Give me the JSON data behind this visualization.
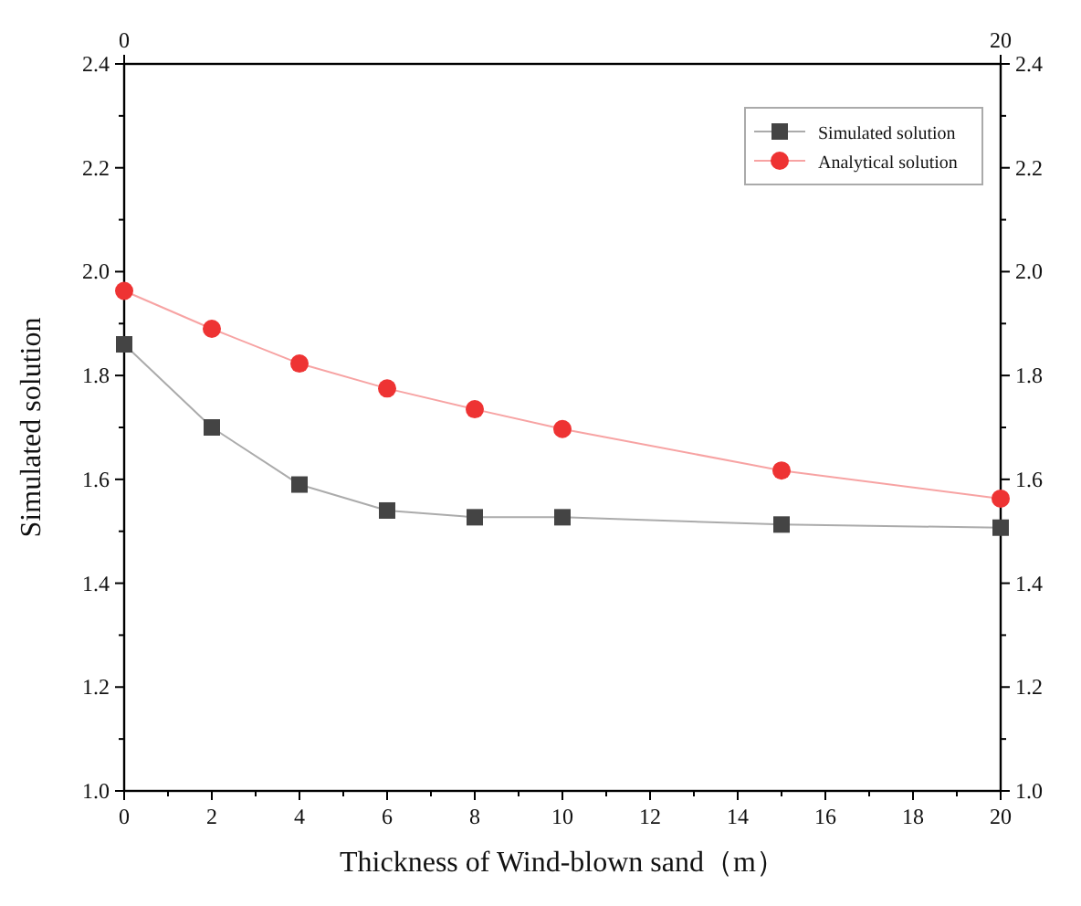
{
  "chart_data": {
    "type": "line",
    "xlabel": "Thickness of Wind-blown sand（m）",
    "ylabel": "Simulated solution",
    "x": [
      0,
      2,
      4,
      6,
      8,
      10,
      15,
      20
    ],
    "series": [
      {
        "name": "Simulated solution",
        "color": "#444444",
        "values": [
          1.86,
          1.7,
          1.59,
          1.54,
          1.527,
          1.527,
          1.513,
          1.507
        ]
      },
      {
        "name": "Analytical solution",
        "color": "#ee3333",
        "marker": "circle",
        "values": [
          1.963,
          1.89,
          1.823,
          1.775,
          1.735,
          1.697,
          1.617,
          1.563
        ]
      }
    ],
    "xlim": [
      0,
      20
    ],
    "xticks": [
      0,
      2,
      4,
      6,
      8,
      10,
      12,
      14,
      16,
      18,
      20
    ],
    "ylim": [
      1.0,
      2.4
    ],
    "yticks": [
      {
        "value": 1.0,
        "label": "1.0"
      },
      1.2,
      1.4,
      1.6,
      1.8,
      {
        "value": 2.0,
        "label": "2.0"
      },
      2.2,
      2.4
    ],
    "y2lim": [
      1.0,
      2.4
    ],
    "y2ticks": [
      {
        "value": 1.0,
        "label": "1.0"
      },
      1.2,
      1.4,
      1.6,
      1.8,
      {
        "value": 2.0,
        "label": "2.0"
      },
      2.2,
      2.4
    ],
    "x2lim": [
      0,
      20
    ],
    "x2ticks": [
      0,
      20
    ],
    "grid": false,
    "legend": "top right",
    "marker": "square",
    "line_style": "solid"
  }
}
